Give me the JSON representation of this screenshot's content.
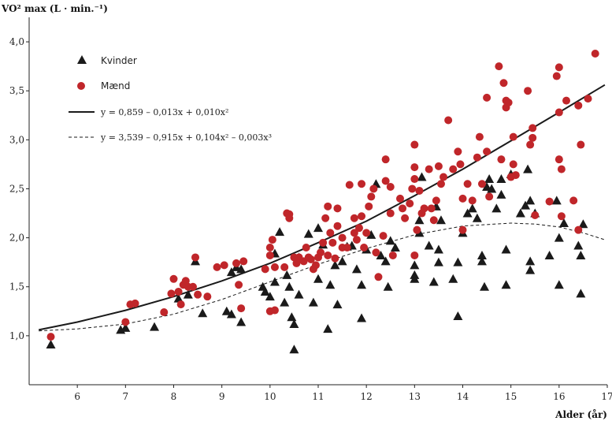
{
  "chart_data": {
    "type": "scatter",
    "title": "",
    "xlabel": "Alder (år)",
    "ylabel": "VO² max (L · min.⁻¹)",
    "xlim": [
      5,
      17
    ],
    "ylim": [
      0.5,
      4.25
    ],
    "x_ticks": [
      6,
      7,
      8,
      9,
      10,
      11,
      12,
      13,
      14,
      15,
      16,
      17
    ],
    "y_ticks": [
      1.0,
      1.5,
      2.0,
      2.5,
      3.0,
      3.5,
      4.0
    ],
    "x_tick_labels": [
      "6",
      "7",
      "8",
      "9",
      "10",
      "11",
      "12",
      "13",
      "14",
      "15",
      "16",
      "17"
    ],
    "y_tick_labels": [
      "1,0",
      "1,5",
      "2,0",
      "2,5",
      "3,0",
      "3,5",
      "4,0"
    ],
    "legend": {
      "placement": "top-left",
      "entries": [
        {
          "label": "Kvinder",
          "marker": "triangle",
          "color": "#1a1a1a"
        },
        {
          "label": "Mænd",
          "marker": "circle",
          "color": "#c0262a"
        },
        {
          "label": "y = 0,859 – 0,013x + 0,010x²",
          "line": "solid",
          "color": "#1a1a1a"
        },
        {
          "label": "y = 3,539 – 0,915x + 0,104x² – 0,003x³",
          "line": "dashed",
          "color": "#1a1a1a"
        }
      ]
    },
    "series": [
      {
        "name": "Kvinder",
        "marker": "triangle",
        "color": "#1a1a1a",
        "points": [
          [
            5.45,
            0.91
          ],
          [
            6.9,
            1.06
          ],
          [
            7.0,
            1.08
          ],
          [
            7.6,
            1.09
          ],
          [
            8.1,
            1.38
          ],
          [
            8.3,
            1.42
          ],
          [
            8.45,
            1.76
          ],
          [
            8.6,
            1.23
          ],
          [
            9.1,
            1.25
          ],
          [
            9.2,
            1.22
          ],
          [
            9.4,
            1.14
          ],
          [
            9.2,
            1.65
          ],
          [
            9.3,
            1.7
          ],
          [
            9.4,
            1.68
          ],
          [
            9.85,
            1.5
          ],
          [
            9.9,
            1.45
          ],
          [
            10.0,
            1.4
          ],
          [
            10.1,
            1.55
          ],
          [
            10.1,
            1.84
          ],
          [
            10.2,
            2.06
          ],
          [
            10.3,
            1.34
          ],
          [
            10.35,
            1.62
          ],
          [
            10.4,
            1.5
          ],
          [
            10.45,
            1.19
          ],
          [
            10.5,
            1.12
          ],
          [
            10.5,
            0.86
          ],
          [
            10.6,
            1.42
          ],
          [
            10.6,
            1.8
          ],
          [
            10.8,
            2.04
          ],
          [
            10.9,
            1.34
          ],
          [
            11.0,
            1.58
          ],
          [
            11.0,
            2.1
          ],
          [
            11.1,
            1.93
          ],
          [
            11.2,
            1.07
          ],
          [
            11.25,
            1.52
          ],
          [
            11.35,
            1.72
          ],
          [
            11.4,
            1.32
          ],
          [
            11.5,
            1.76
          ],
          [
            11.6,
            1.91
          ],
          [
            11.7,
            1.92
          ],
          [
            11.8,
            1.68
          ],
          [
            11.9,
            1.18
          ],
          [
            11.9,
            1.52
          ],
          [
            12.0,
            1.88
          ],
          [
            12.1,
            2.03
          ],
          [
            12.2,
            2.55
          ],
          [
            12.3,
            1.82
          ],
          [
            12.4,
            1.76
          ],
          [
            12.45,
            1.5
          ],
          [
            12.5,
            1.97
          ],
          [
            12.6,
            1.9
          ],
          [
            13.0,
            1.62
          ],
          [
            13.0,
            1.72
          ],
          [
            13.0,
            1.58
          ],
          [
            13.1,
            2.18
          ],
          [
            13.1,
            2.05
          ],
          [
            13.15,
            2.62
          ],
          [
            13.3,
            1.92
          ],
          [
            13.4,
            1.55
          ],
          [
            13.45,
            2.32
          ],
          [
            13.5,
            1.88
          ],
          [
            13.5,
            1.75
          ],
          [
            13.55,
            2.18
          ],
          [
            13.8,
            1.58
          ],
          [
            13.9,
            1.2
          ],
          [
            13.9,
            1.75
          ],
          [
            14.0,
            2.05
          ],
          [
            14.1,
            2.25
          ],
          [
            14.2,
            2.3
          ],
          [
            14.3,
            2.2
          ],
          [
            14.4,
            1.82
          ],
          [
            14.4,
            1.76
          ],
          [
            14.45,
            1.5
          ],
          [
            14.5,
            2.52
          ],
          [
            14.55,
            2.6
          ],
          [
            14.6,
            2.5
          ],
          [
            14.7,
            2.3
          ],
          [
            14.8,
            2.44
          ],
          [
            14.8,
            2.6
          ],
          [
            14.9,
            1.88
          ],
          [
            14.9,
            1.52
          ],
          [
            15.0,
            2.65
          ],
          [
            15.2,
            2.25
          ],
          [
            15.3,
            2.33
          ],
          [
            15.35,
            2.7
          ],
          [
            15.4,
            2.38
          ],
          [
            15.4,
            1.76
          ],
          [
            15.4,
            1.67
          ],
          [
            15.5,
            2.25
          ],
          [
            15.8,
            1.82
          ],
          [
            15.95,
            2.38
          ],
          [
            16.0,
            2.0
          ],
          [
            16.0,
            1.52
          ],
          [
            16.1,
            2.15
          ],
          [
            16.4,
            1.92
          ],
          [
            16.45,
            1.82
          ],
          [
            16.45,
            1.43
          ],
          [
            16.5,
            2.14
          ]
        ]
      },
      {
        "name": "Mænd",
        "marker": "circle",
        "color": "#c0262a",
        "points": [
          [
            5.45,
            0.99
          ],
          [
            7.0,
            1.14
          ],
          [
            7.1,
            1.32
          ],
          [
            7.2,
            1.33
          ],
          [
            7.8,
            1.24
          ],
          [
            7.95,
            1.43
          ],
          [
            8.0,
            1.58
          ],
          [
            8.1,
            1.45
          ],
          [
            8.15,
            1.32
          ],
          [
            8.2,
            1.52
          ],
          [
            8.25,
            1.56
          ],
          [
            8.3,
            1.5
          ],
          [
            8.4,
            1.5
          ],
          [
            8.45,
            1.8
          ],
          [
            8.5,
            1.42
          ],
          [
            8.7,
            1.4
          ],
          [
            8.9,
            1.7
          ],
          [
            9.05,
            1.72
          ],
          [
            9.3,
            1.74
          ],
          [
            9.45,
            1.76
          ],
          [
            9.35,
            1.52
          ],
          [
            9.4,
            1.28
          ],
          [
            9.9,
            1.68
          ],
          [
            10.0,
            1.25
          ],
          [
            10.0,
            1.82
          ],
          [
            10.1,
            1.26
          ],
          [
            10.05,
            1.98
          ],
          [
            10.1,
            1.7
          ],
          [
            10.0,
            1.9
          ],
          [
            10.3,
            1.7
          ],
          [
            10.35,
            2.25
          ],
          [
            10.4,
            2.2
          ],
          [
            10.4,
            2.24
          ],
          [
            10.5,
            1.8
          ],
          [
            10.55,
            1.74
          ],
          [
            10.6,
            1.8
          ],
          [
            10.7,
            1.76
          ],
          [
            10.75,
            1.9
          ],
          [
            10.8,
            1.8
          ],
          [
            10.85,
            1.78
          ],
          [
            10.9,
            1.68
          ],
          [
            10.95,
            1.72
          ],
          [
            11.0,
            1.8
          ],
          [
            11.05,
            1.85
          ],
          [
            11.1,
            1.95
          ],
          [
            11.15,
            2.2
          ],
          [
            11.2,
            2.32
          ],
          [
            11.2,
            1.82
          ],
          [
            11.25,
            2.05
          ],
          [
            11.3,
            1.95
          ],
          [
            11.35,
            1.79
          ],
          [
            11.4,
            2.3
          ],
          [
            11.4,
            2.12
          ],
          [
            11.5,
            2.0
          ],
          [
            11.5,
            1.9
          ],
          [
            11.6,
            1.9
          ],
          [
            11.65,
            2.54
          ],
          [
            11.75,
            2.05
          ],
          [
            11.75,
            2.2
          ],
          [
            11.8,
            1.98
          ],
          [
            11.85,
            2.1
          ],
          [
            11.9,
            2.55
          ],
          [
            11.9,
            2.22
          ],
          [
            11.95,
            1.9
          ],
          [
            12.0,
            2.05
          ],
          [
            12.05,
            2.32
          ],
          [
            12.1,
            2.42
          ],
          [
            12.15,
            2.5
          ],
          [
            12.2,
            1.85
          ],
          [
            12.25,
            1.6
          ],
          [
            12.35,
            2.02
          ],
          [
            12.4,
            2.58
          ],
          [
            12.4,
            2.8
          ],
          [
            12.5,
            2.25
          ],
          [
            12.5,
            2.52
          ],
          [
            12.55,
            1.82
          ],
          [
            12.7,
            2.4
          ],
          [
            12.75,
            2.3
          ],
          [
            12.8,
            2.2
          ],
          [
            12.9,
            2.35
          ],
          [
            12.95,
            2.5
          ],
          [
            13.0,
            2.95
          ],
          [
            13.0,
            2.72
          ],
          [
            13.0,
            2.6
          ],
          [
            13.05,
            2.08
          ],
          [
            13.0,
            1.82
          ],
          [
            13.1,
            2.48
          ],
          [
            13.15,
            2.25
          ],
          [
            13.2,
            2.3
          ],
          [
            13.3,
            2.7
          ],
          [
            13.35,
            2.3
          ],
          [
            13.4,
            2.18
          ],
          [
            13.45,
            2.38
          ],
          [
            13.5,
            2.73
          ],
          [
            13.55,
            2.55
          ],
          [
            13.6,
            2.62
          ],
          [
            13.7,
            3.2
          ],
          [
            13.8,
            2.7
          ],
          [
            13.9,
            2.88
          ],
          [
            13.95,
            2.75
          ],
          [
            14.0,
            2.4
          ],
          [
            14.0,
            2.08
          ],
          [
            14.1,
            2.55
          ],
          [
            14.2,
            2.38
          ],
          [
            14.3,
            2.82
          ],
          [
            14.35,
            3.03
          ],
          [
            14.4,
            2.55
          ],
          [
            14.5,
            2.88
          ],
          [
            14.5,
            3.43
          ],
          [
            14.55,
            2.42
          ],
          [
            14.75,
            3.75
          ],
          [
            14.8,
            2.8
          ],
          [
            14.85,
            3.58
          ],
          [
            14.9,
            3.4
          ],
          [
            14.9,
            3.33
          ],
          [
            14.95,
            3.38
          ],
          [
            15.0,
            2.62
          ],
          [
            15.05,
            2.75
          ],
          [
            15.05,
            3.03
          ],
          [
            15.1,
            2.64
          ],
          [
            15.35,
            3.5
          ],
          [
            15.4,
            2.95
          ],
          [
            15.45,
            3.02
          ],
          [
            15.45,
            3.12
          ],
          [
            15.5,
            2.23
          ],
          [
            15.8,
            2.37
          ],
          [
            15.95,
            3.65
          ],
          [
            16.0,
            3.74
          ],
          [
            16.0,
            3.28
          ],
          [
            16.0,
            2.8
          ],
          [
            16.05,
            2.7
          ],
          [
            16.05,
            2.22
          ],
          [
            16.15,
            3.4
          ],
          [
            16.3,
            2.38
          ],
          [
            16.4,
            3.35
          ],
          [
            16.45,
            2.95
          ],
          [
            16.4,
            2.08
          ],
          [
            16.6,
            3.42
          ],
          [
            16.75,
            3.88
          ]
        ]
      },
      {
        "name": "y = 0,859 – 0,013x + 0,010x²",
        "type": "line",
        "style": "solid",
        "x": [
          5.2,
          6,
          7,
          8,
          9,
          10,
          11,
          12,
          13,
          14,
          15,
          16,
          16.95
        ],
        "values": [
          1.06,
          1.14,
          1.26,
          1.4,
          1.56,
          1.74,
          1.95,
          2.17,
          2.43,
          2.7,
          2.99,
          3.28,
          3.56
        ]
      },
      {
        "name": "y = 3,539 – 0,915x + 0,104x² – 0,003x³",
        "type": "line",
        "style": "dashed",
        "x": [
          5.2,
          6,
          7,
          8,
          9,
          10,
          11,
          12,
          13,
          14,
          15,
          15.5,
          16,
          16.5,
          16.95
        ],
        "values": [
          1.05,
          1.07,
          1.12,
          1.22,
          1.37,
          1.55,
          1.73,
          1.89,
          2.03,
          2.12,
          2.15,
          2.14,
          2.11,
          2.05,
          1.98
        ]
      }
    ]
  }
}
